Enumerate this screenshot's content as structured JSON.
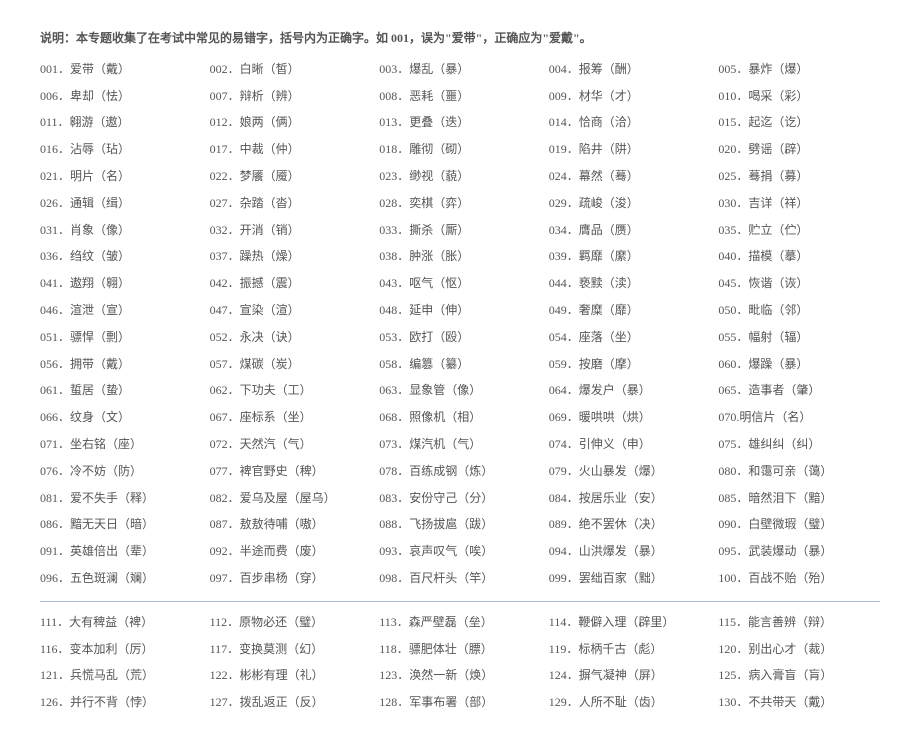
{
  "intro": "说明：本专题收集了在考试中常见的易错字，括号内为正确字。如 001，误为\"爱带\"，正确应为\"爱戴\"。",
  "items": [
    "001．爱带（戴）",
    "002．白晰（皙）",
    "003．爆乱（暴）",
    "004．报筹（酬）",
    "005．暴炸（爆）",
    "006．卑却（怯）",
    "007．辩析（辨）",
    "008．恶耗（噩）",
    "009．材华（才）",
    "010．喝采（彩）",
    "011．翱游（遨）",
    "012．娘两（俩）",
    "013．更叠（迭）",
    "014．恰商（洽）",
    "015．起迄（讫）",
    "016．沾辱（玷）",
    "017．中裁（仲）",
    "018．雕彻（砌）",
    "019．陷井（阱）",
    "020．劈谣（辟）",
    "021．明片（名）",
    "022．梦餍（魇）",
    "023．缈视（藐）",
    "024．幕然（蓦）",
    "025．蓦捐（募）",
    "026．通辑（缉）",
    "027．杂踏（沓）",
    "028．奕棋（弈）",
    "029．疏峻（浚）",
    "030．吉详（祥）",
    "031．肖象（像）",
    "032．开消（销）",
    "033．撕杀（厮）",
    "034．膺品（赝）",
    "035．贮立（伫）",
    "036．绉纹（皱）",
    "037．躁热（燥）",
    "038．肿涨（胀）",
    "039．羁靡（縻）",
    "040．描模（摹）",
    "041．遨翔（翱）",
    "042．振撼（震）",
    "043．呕气（怄）",
    "044．亵黩（渎）",
    "045．恢谐（诙）",
    "046．渲泄（宣）",
    "047．宣染（渲）",
    "048．延申（伸）",
    "049．奢糜（靡）",
    "050．毗临（邻）",
    "051．骠悍（剽）",
    "052．永决（诀）",
    "053．欧打（殴）",
    "054．座落（坐）",
    "055．幅射（辐）",
    "056．拥带（戴）",
    "057．煤碳（炭）",
    "058．编篡（纂）",
    "059．按磨（摩）",
    "060．爆躁（暴）",
    "061．蜇居（蛰）",
    "062．下功夫（工）",
    "063．显象管（像）",
    "064．爆发户（暴）",
    "065．造事者（肇）",
    "066．纹身（文）",
    "067．座标系（坐）",
    "068．照像机（相）",
    "069．暖哄哄（烘）",
    "070.明信片（名）",
    "071．坐右铭（座）",
    "072．天然汽（气）",
    "073．煤汽机（气）",
    "074．引伸义（申）",
    "075．雄纠纠（纠）",
    "076．冷不妨（防）",
    "077．裨官野史（稗）",
    "078．百练成钢（炼）",
    "079．火山暴发（爆）",
    "080．和霭可亲（蔼）",
    "081．爱不失手（释）",
    "082．爱乌及屋（屋乌）",
    "083．安份守己（分）",
    "084．按居乐业（安）",
    "085．暗然泪下（黯）",
    "086．黯无天日（暗）",
    "087．敖敖待哺（嗷）",
    "088．飞扬拔扈（跋）",
    "089．绝不罢休（决）",
    "090．白壁微瑕（璧）",
    "091．英雄倍出（辈）",
    "092．半途而费（废）",
    "093．哀声叹气（唉）",
    "094．山洪爆发（暴）",
    "095．武装爆动（暴）",
    "096．五色斑澜（斓）",
    "097．百步串杨（穿）",
    "098．百尺杆头（竿）",
    "099．罢绌百家（黜）",
    "100．百战不贻（殆）"
  ],
  "items2": [
    "111．大有稗益（裨）",
    "112．原物必还（璧）",
    "113．森严壁磊（垒）",
    "114．鞭僻入理（辟里）",
    "115．能言善辨（辩）",
    "116．变本加利（厉）",
    "117．变换莫测（幻）",
    "118．骠肥体壮（膘）",
    "119．标柄千古（彪）",
    "120．别出心才（裁）",
    "121．兵慌马乱（荒）",
    "122．彬彬有理（礼）",
    "123．涣然一新（焕）",
    "124．摒气凝神（屏）",
    "125．病入膏盲（肓）",
    "126．并行不背（悖）",
    "127．拨乱返正（反）",
    "128．军事布署（部）",
    "129．人所不耻（齿）",
    "130．不共带天（戴）"
  ]
}
